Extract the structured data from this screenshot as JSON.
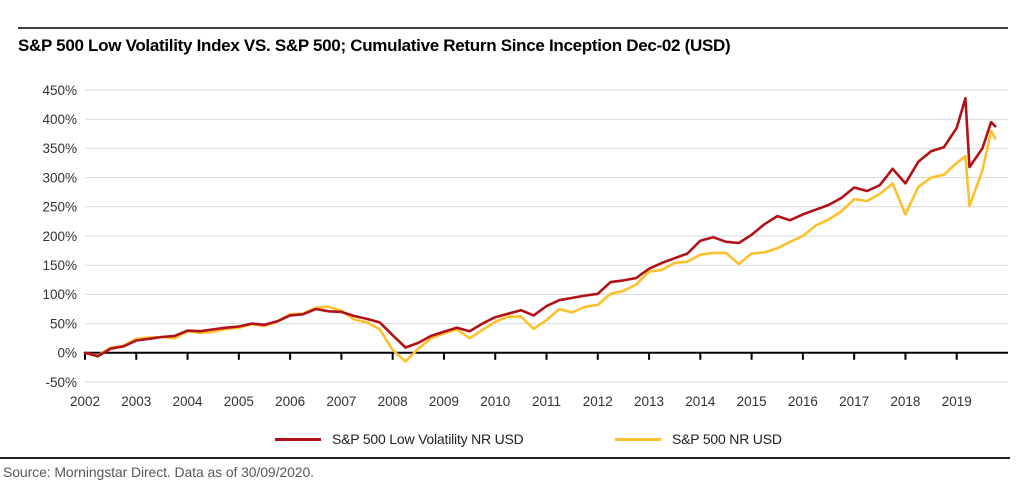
{
  "page": {
    "background": "#ffffff"
  },
  "chart_data": {
    "type": "line",
    "title": "S&P 500 Low Volatility Index VS. S&P 500; Cumulative Return Since Inception Dec-02 (USD)",
    "source_note": "Source: Morningstar Direct. Data as of 30/09/2020.",
    "grid": "horizontal",
    "legend_position": "bottom-center",
    "x_axis": {
      "tick_labels": [
        "2002",
        "2003",
        "2004",
        "2005",
        "2006",
        "2007",
        "2008",
        "2009",
        "2010",
        "2011",
        "2012",
        "2013",
        "2014",
        "2015",
        "2016",
        "2017",
        "2018",
        "2019"
      ],
      "xlim": [
        2002,
        2020
      ],
      "note": "decimal years; series runs Dec-2002 inception to 30/09/2020"
    },
    "y_axis": {
      "tick_labels": [
        "450%",
        "400%",
        "350%",
        "300%",
        "250%",
        "200%",
        "150%",
        "100%",
        "50%",
        "0%",
        "-50%"
      ],
      "ylim": [
        -50,
        450
      ],
      "unit": "cumulative return %"
    },
    "x": [
      2002,
      2002.25,
      2002.5,
      2002.75,
      2003,
      2003.25,
      2003.5,
      2003.75,
      2004,
      2004.25,
      2004.5,
      2004.75,
      2005,
      2005.25,
      2005.5,
      2005.75,
      2006,
      2006.25,
      2006.5,
      2006.75,
      2007,
      2007.25,
      2007.5,
      2007.75,
      2008,
      2008.25,
      2008.5,
      2008.75,
      2009,
      2009.25,
      2009.5,
      2009.75,
      2010,
      2010.25,
      2010.5,
      2010.75,
      2011,
      2011.25,
      2011.5,
      2011.75,
      2012,
      2012.25,
      2012.5,
      2012.75,
      2013,
      2013.25,
      2013.5,
      2013.75,
      2014,
      2014.25,
      2014.5,
      2014.75,
      2015,
      2015.25,
      2015.5,
      2015.75,
      2016,
      2016.25,
      2016.5,
      2016.75,
      2017,
      2017.25,
      2017.5,
      2017.75,
      2018,
      2018.25,
      2018.5,
      2018.75,
      2019,
      2019.17,
      2019.25,
      2019.5,
      2019.67,
      2019.75
    ],
    "series": [
      {
        "name": "S&P 500 Low Volatility NR USD",
        "color": "#b01218",
        "values": [
          0,
          -6,
          7,
          11,
          21,
          24,
          27,
          29,
          38,
          37,
          40,
          43,
          45,
          50,
          48,
          54,
          64,
          66,
          75,
          71,
          70,
          63,
          58,
          52,
          30,
          9,
          17,
          29,
          36,
          43,
          37,
          50,
          61,
          67,
          73,
          64,
          80,
          90,
          94,
          98,
          101,
          121,
          124,
          128,
          144,
          154,
          162,
          170,
          192,
          198,
          190,
          188,
          202,
          220,
          234,
          227,
          237,
          245,
          253,
          265,
          283,
          277,
          287,
          315,
          290,
          327,
          345,
          352,
          385,
          436,
          318,
          350,
          395,
          388
        ]
      },
      {
        "name": "S&P 500 NR USD",
        "color": "#fcc12d",
        "values": [
          0,
          -5,
          9,
          12,
          24,
          26,
          27,
          25,
          37,
          34,
          36,
          41,
          43,
          49,
          46,
          53,
          66,
          67,
          77,
          79,
          72,
          57,
          52,
          40,
          5,
          -15,
          7,
          25,
          33,
          40,
          25,
          39,
          53,
          62,
          62,
          41,
          56,
          75,
          69,
          79,
          82,
          101,
          106,
          117,
          139,
          142,
          154,
          156,
          168,
          171,
          171,
          152,
          170,
          172,
          179,
          190,
          200,
          218,
          228,
          242,
          263,
          260,
          272,
          290,
          237,
          284,
          300,
          305,
          325,
          337,
          251,
          312,
          380,
          367
        ]
      }
    ],
    "colors": {
      "axis": "#000000",
      "gridline": "#d9d9d9"
    }
  }
}
